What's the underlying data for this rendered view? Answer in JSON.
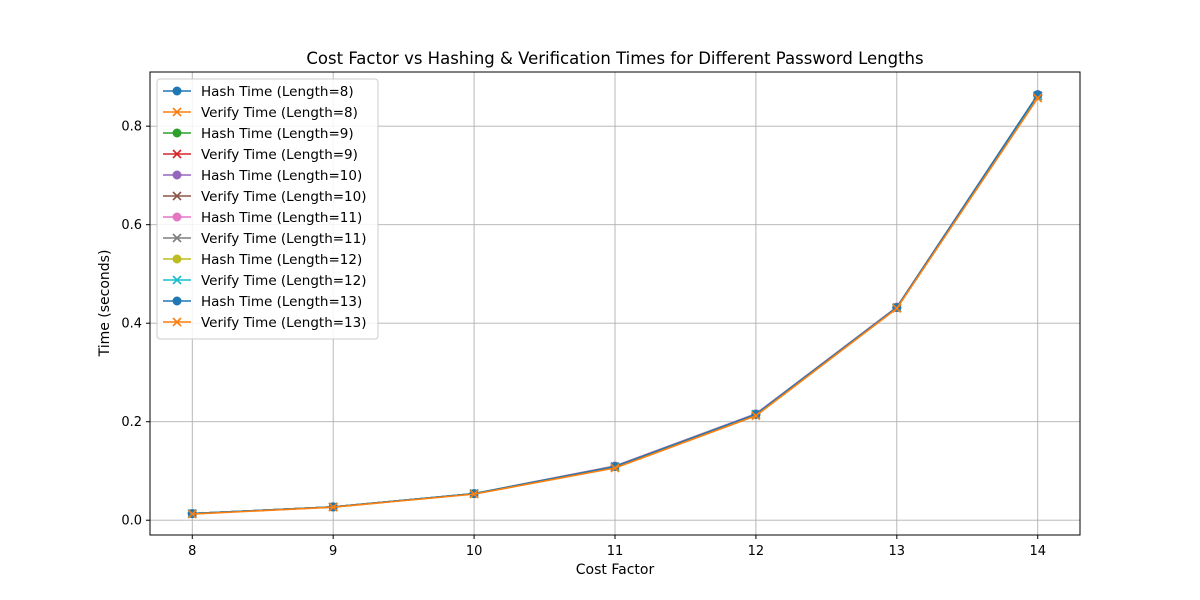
{
  "chart_data": {
    "type": "line",
    "title": "Cost Factor vs Hashing & Verification Times for Different Password Lengths",
    "xlabel": "Cost Factor",
    "ylabel": "Time (seconds)",
    "x": [
      8,
      9,
      10,
      11,
      12,
      13,
      14
    ],
    "xlim": [
      7.7,
      14.3
    ],
    "ylim": [
      -0.03,
      0.91
    ],
    "xticks": [
      8,
      9,
      10,
      11,
      12,
      13,
      14
    ],
    "yticks": [
      0.0,
      0.2,
      0.4,
      0.6,
      0.8
    ],
    "ytick_labels": [
      "0.0",
      "0.2",
      "0.4",
      "0.6",
      "0.8"
    ],
    "grid": true,
    "legend_position": "top-left",
    "series": [
      {
        "name": "Hash Time (Length=8)",
        "color": "#1f77b4",
        "marker": "circle",
        "values": [
          0.0135,
          0.027,
          0.054,
          0.109,
          0.216,
          0.432,
          0.863
        ]
      },
      {
        "name": "Verify Time (Length=8)",
        "color": "#ff7f0e",
        "marker": "x",
        "values": [
          0.0135,
          0.027,
          0.054,
          0.108,
          0.215,
          0.431,
          0.862
        ]
      },
      {
        "name": "Hash Time (Length=9)",
        "color": "#2ca02c",
        "marker": "circle",
        "values": [
          0.0135,
          0.027,
          0.054,
          0.109,
          0.215,
          0.432,
          0.862
        ]
      },
      {
        "name": "Verify Time (Length=9)",
        "color": "#d62728",
        "marker": "x",
        "values": [
          0.0135,
          0.027,
          0.054,
          0.108,
          0.215,
          0.431,
          0.861
        ]
      },
      {
        "name": "Hash Time (Length=10)",
        "color": "#9467bd",
        "marker": "circle",
        "values": [
          0.0135,
          0.027,
          0.054,
          0.11,
          0.216,
          0.432,
          0.863
        ]
      },
      {
        "name": "Verify Time (Length=10)",
        "color": "#8c564b",
        "marker": "x",
        "values": [
          0.0135,
          0.027,
          0.054,
          0.109,
          0.215,
          0.431,
          0.862
        ]
      },
      {
        "name": "Hash Time (Length=11)",
        "color": "#e377c2",
        "marker": "circle",
        "values": [
          0.0135,
          0.027,
          0.054,
          0.11,
          0.216,
          0.433,
          0.864
        ]
      },
      {
        "name": "Verify Time (Length=11)",
        "color": "#7f7f7f",
        "marker": "x",
        "values": [
          0.0135,
          0.027,
          0.054,
          0.109,
          0.215,
          0.432,
          0.862
        ]
      },
      {
        "name": "Hash Time (Length=12)",
        "color": "#bcbd22",
        "marker": "circle",
        "values": [
          0.0135,
          0.027,
          0.054,
          0.109,
          0.215,
          0.432,
          0.863
        ]
      },
      {
        "name": "Verify Time (Length=12)",
        "color": "#17becf",
        "marker": "x",
        "values": [
          0.0135,
          0.027,
          0.054,
          0.108,
          0.215,
          0.431,
          0.861
        ]
      },
      {
        "name": "Hash Time (Length=13)",
        "color": "#1f77b4",
        "marker": "circle",
        "values": [
          0.0135,
          0.027,
          0.054,
          0.109,
          0.215,
          0.432,
          0.864
        ]
      },
      {
        "name": "Verify Time (Length=13)",
        "color": "#ff7f0e",
        "marker": "x",
        "values": [
          0.0125,
          0.0265,
          0.053,
          0.106,
          0.212,
          0.43,
          0.857
        ]
      }
    ]
  }
}
